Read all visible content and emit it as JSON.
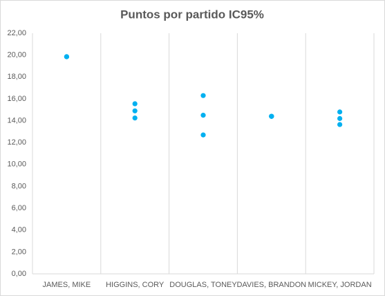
{
  "chart_data": {
    "type": "scatter",
    "title": "Puntos por partido IC95%",
    "categories": [
      "JAMES, MIKE",
      "HIGGINS, CORY",
      "DOUGLAS, TONEY",
      "DAVIES, BRANDON",
      "MICKEY, JORDAN"
    ],
    "series": [
      {
        "color": "#00b0f0",
        "values": [
          19.85,
          15.55,
          16.3,
          14.4,
          14.8
        ]
      },
      {
        "color": "#00b0f0",
        "values": [
          19.85,
          14.9,
          14.5,
          14.4,
          14.2
        ]
      },
      {
        "color": "#00b0f0",
        "values": [
          19.85,
          14.25,
          12.7,
          14.4,
          13.65
        ]
      }
    ],
    "ylim": [
      0,
      22
    ],
    "yticks": [
      {
        "value": 0,
        "label": "0,00"
      },
      {
        "value": 2,
        "label": "2,00"
      },
      {
        "value": 4,
        "label": "4,00"
      },
      {
        "value": 6,
        "label": "6,00"
      },
      {
        "value": 8,
        "label": "8,00"
      },
      {
        "value": 10,
        "label": "10,00"
      },
      {
        "value": 12,
        "label": "12,00"
      },
      {
        "value": 14,
        "label": "14,00"
      },
      {
        "value": 16,
        "label": "16,00"
      },
      {
        "value": 18,
        "label": "18,00"
      },
      {
        "value": 20,
        "label": "20,00"
      },
      {
        "value": 22,
        "label": "22,00"
      }
    ],
    "grid": "vertical"
  }
}
